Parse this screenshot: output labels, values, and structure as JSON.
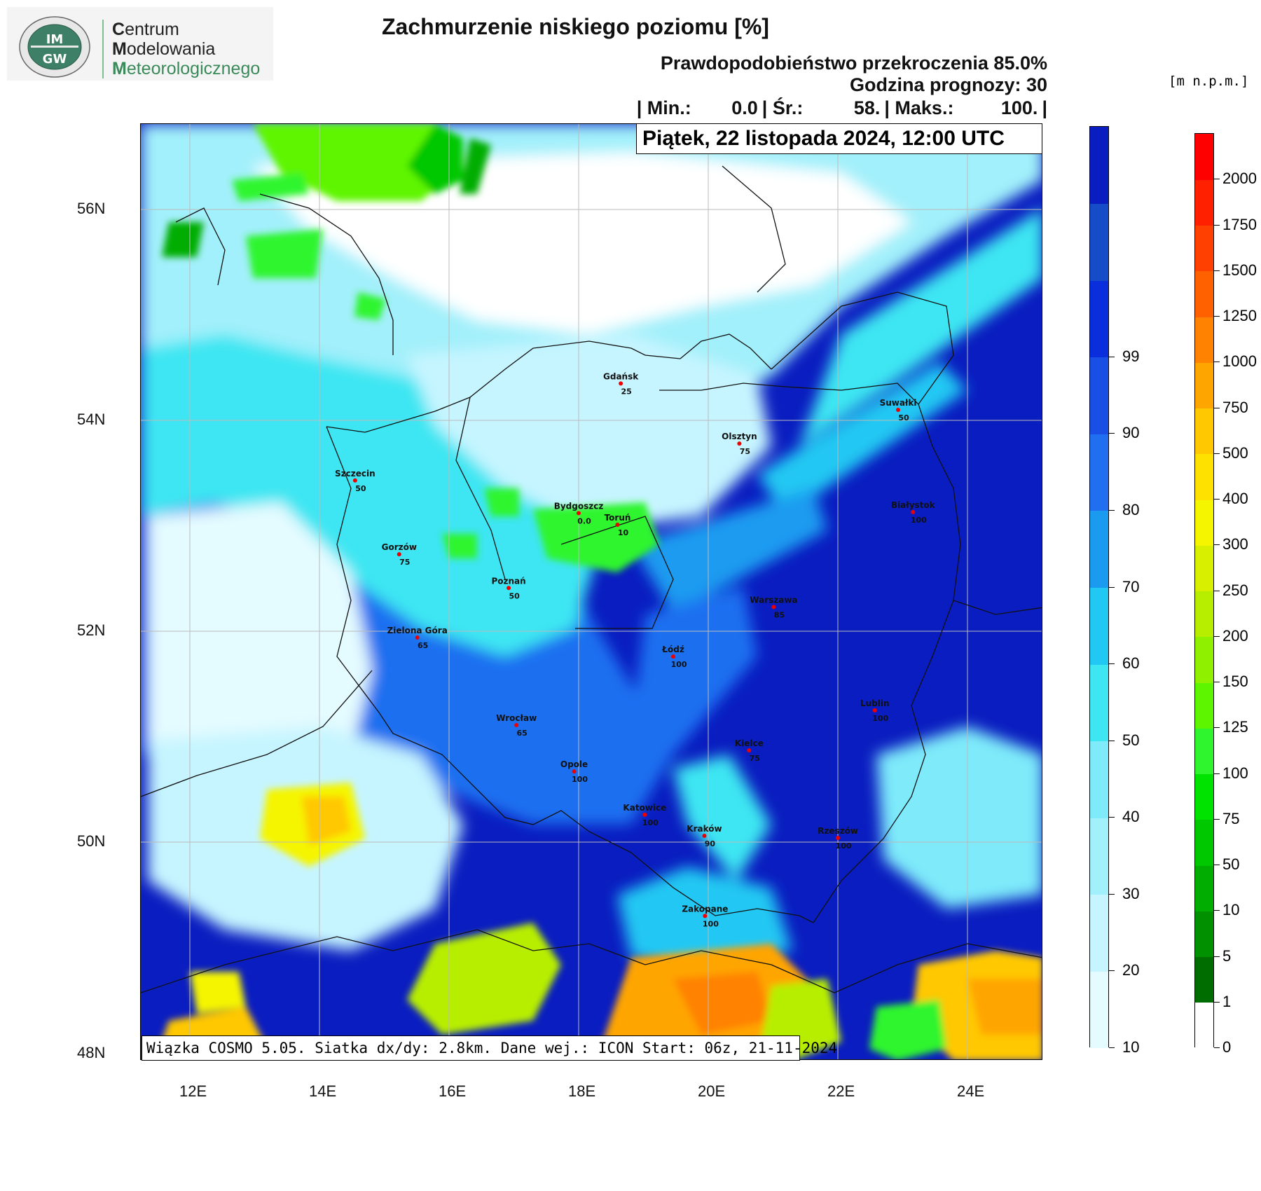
{
  "logo": {
    "seal_text": "IMGW",
    "line1_first": "C",
    "line1_rest": "entrum",
    "line2_first": "M",
    "line2_rest": "odelowania",
    "line3_first": "M",
    "line3_rest": "eteorologicznego"
  },
  "title": "Zachmurzenie niskiego poziomu [%]",
  "probability": "Prawdopodobieństwo przekroczenia 85.0%",
  "forecast_hour": "Godzina prognozy: 30",
  "stats": {
    "sep1": "| Min.:",
    "min": "0.0",
    "sep2": "| Śr.:",
    "avg": "58.",
    "sep3": "| Maks.:",
    "max": "100.",
    "sep4": "|"
  },
  "date_label": "Piątek, 22 listopada 2024, 12:00 UTC",
  "footer": "Wiązka COSMO 5.05. Siatka dx/dy: 2.8km. Dane wej.: ICON Start: 06z, 21-11-2024",
  "unit_label": "[m n.p.m.]",
  "lat_labels": [
    "56N",
    "54N",
    "52N",
    "50N",
    "48N"
  ],
  "lon_labels": [
    "12E",
    "14E",
    "16E",
    "18E",
    "20E",
    "22E",
    "24E"
  ],
  "cloud_scale": {
    "ticks": [
      "10",
      "20",
      "30",
      "40",
      "50",
      "60",
      "70",
      "80",
      "90",
      "99"
    ],
    "colors": [
      "#e4fbff",
      "#c6f5ff",
      "#a2f0fb",
      "#7eeafa",
      "#3ee6f2",
      "#20c8f3",
      "#1b9bf0",
      "#1f6ff0",
      "#1a4fe6",
      "#0a2edb",
      "#174cc8",
      "#0a1dc0"
    ]
  },
  "terrain_scale": {
    "ticks": [
      "0",
      "1",
      "5",
      "10",
      "50",
      "75",
      "100",
      "125",
      "150",
      "200",
      "250",
      "300",
      "400",
      "500",
      "750",
      "1000",
      "1250",
      "1500",
      "1750",
      "2000"
    ],
    "colors": [
      "#ffffff",
      "#006d00",
      "#009000",
      "#00ad00",
      "#00c800",
      "#00e200",
      "#2ef52e",
      "#5ef500",
      "#8ff000",
      "#b7ee00",
      "#d8f000",
      "#f5f500",
      "#ffe100",
      "#ffc800",
      "#ffa500",
      "#ff8200",
      "#ff6000",
      "#ff4000",
      "#ff2000",
      "#ff0000"
    ]
  },
  "cities": [
    {
      "name": "Gdańsk",
      "value": "25",
      "lon": 18.65,
      "lat": 54.35
    },
    {
      "name": "Suwałki",
      "value": "50",
      "lon": 22.93,
      "lat": 54.1
    },
    {
      "name": "Olsztyn",
      "value": "75",
      "lon": 20.48,
      "lat": 53.78
    },
    {
      "name": "Szczecin",
      "value": "50",
      "lon": 14.55,
      "lat": 53.43
    },
    {
      "name": "Bydgoszcz",
      "value": "0.0",
      "lon": 18.0,
      "lat": 53.12
    },
    {
      "name": "Toruń",
      "value": "10",
      "lon": 18.6,
      "lat": 53.01
    },
    {
      "name": "Białystok",
      "value": "100",
      "lon": 23.16,
      "lat": 53.13
    },
    {
      "name": "Gorzów",
      "value": "75",
      "lon": 15.23,
      "lat": 52.73
    },
    {
      "name": "Poznań",
      "value": "50",
      "lon": 16.92,
      "lat": 52.41
    },
    {
      "name": "Warszawa",
      "value": "85",
      "lon": 21.01,
      "lat": 52.23
    },
    {
      "name": "Zielona Góra",
      "value": "65",
      "lon": 15.51,
      "lat": 51.94
    },
    {
      "name": "Łódź",
      "value": "100",
      "lon": 19.46,
      "lat": 51.76
    },
    {
      "name": "Lublin",
      "value": "100",
      "lon": 22.57,
      "lat": 51.25
    },
    {
      "name": "Wrocław",
      "value": "65",
      "lon": 17.04,
      "lat": 51.11
    },
    {
      "name": "Kielce",
      "value": "75",
      "lon": 20.63,
      "lat": 50.87
    },
    {
      "name": "Opole",
      "value": "100",
      "lon": 17.93,
      "lat": 50.67
    },
    {
      "name": "Katowice",
      "value": "100",
      "lon": 19.02,
      "lat": 50.26
    },
    {
      "name": "Kraków",
      "value": "90",
      "lon": 19.94,
      "lat": 50.06
    },
    {
      "name": "Rzeszów",
      "value": "100",
      "lon": 22.0,
      "lat": 50.04
    },
    {
      "name": "Zakopane",
      "value": "100",
      "lon": 19.95,
      "lat": 49.3
    }
  ]
}
